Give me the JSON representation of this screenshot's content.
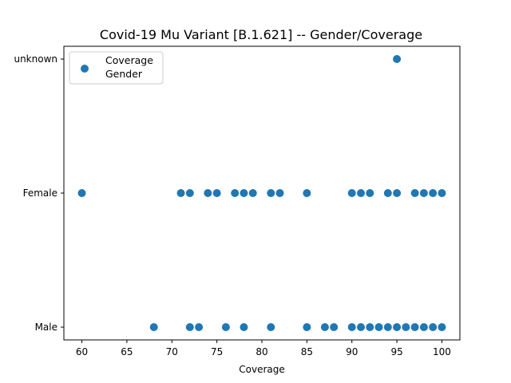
{
  "chart_data": {
    "type": "scatter",
    "title": "Covid-19 Mu Variant [B.1.621] -- Gender/Coverage",
    "xlabel": "Coverage",
    "ylabel": "",
    "xlim": [
      58,
      102
    ],
    "xticks": [
      60,
      65,
      70,
      75,
      80,
      85,
      90,
      95,
      100
    ],
    "categories": [
      "Male",
      "Female",
      "unknown"
    ],
    "legend": {
      "labels": [
        "Coverage",
        "Gender"
      ],
      "position": "top-left"
    },
    "marker_color": "#1f77b4",
    "grid": false,
    "series": [
      {
        "name": "Coverage Gender",
        "points": [
          {
            "x": 95,
            "y": "unknown"
          },
          {
            "x": 60,
            "y": "Female"
          },
          {
            "x": 71,
            "y": "Female"
          },
          {
            "x": 72,
            "y": "Female"
          },
          {
            "x": 74,
            "y": "Female"
          },
          {
            "x": 75,
            "y": "Female"
          },
          {
            "x": 77,
            "y": "Female"
          },
          {
            "x": 78,
            "y": "Female"
          },
          {
            "x": 79,
            "y": "Female"
          },
          {
            "x": 81,
            "y": "Female"
          },
          {
            "x": 82,
            "y": "Female"
          },
          {
            "x": 85,
            "y": "Female"
          },
          {
            "x": 90,
            "y": "Female"
          },
          {
            "x": 91,
            "y": "Female"
          },
          {
            "x": 92,
            "y": "Female"
          },
          {
            "x": 94,
            "y": "Female"
          },
          {
            "x": 95,
            "y": "Female"
          },
          {
            "x": 97,
            "y": "Female"
          },
          {
            "x": 98,
            "y": "Female"
          },
          {
            "x": 99,
            "y": "Female"
          },
          {
            "x": 100,
            "y": "Female"
          },
          {
            "x": 68,
            "y": "Male"
          },
          {
            "x": 72,
            "y": "Male"
          },
          {
            "x": 73,
            "y": "Male"
          },
          {
            "x": 76,
            "y": "Male"
          },
          {
            "x": 78,
            "y": "Male"
          },
          {
            "x": 81,
            "y": "Male"
          },
          {
            "x": 85,
            "y": "Male"
          },
          {
            "x": 87,
            "y": "Male"
          },
          {
            "x": 88,
            "y": "Male"
          },
          {
            "x": 90,
            "y": "Male"
          },
          {
            "x": 91,
            "y": "Male"
          },
          {
            "x": 92,
            "y": "Male"
          },
          {
            "x": 93,
            "y": "Male"
          },
          {
            "x": 94,
            "y": "Male"
          },
          {
            "x": 95,
            "y": "Male"
          },
          {
            "x": 96,
            "y": "Male"
          },
          {
            "x": 97,
            "y": "Male"
          },
          {
            "x": 98,
            "y": "Male"
          },
          {
            "x": 99,
            "y": "Male"
          },
          {
            "x": 100,
            "y": "Male"
          }
        ]
      }
    ]
  }
}
